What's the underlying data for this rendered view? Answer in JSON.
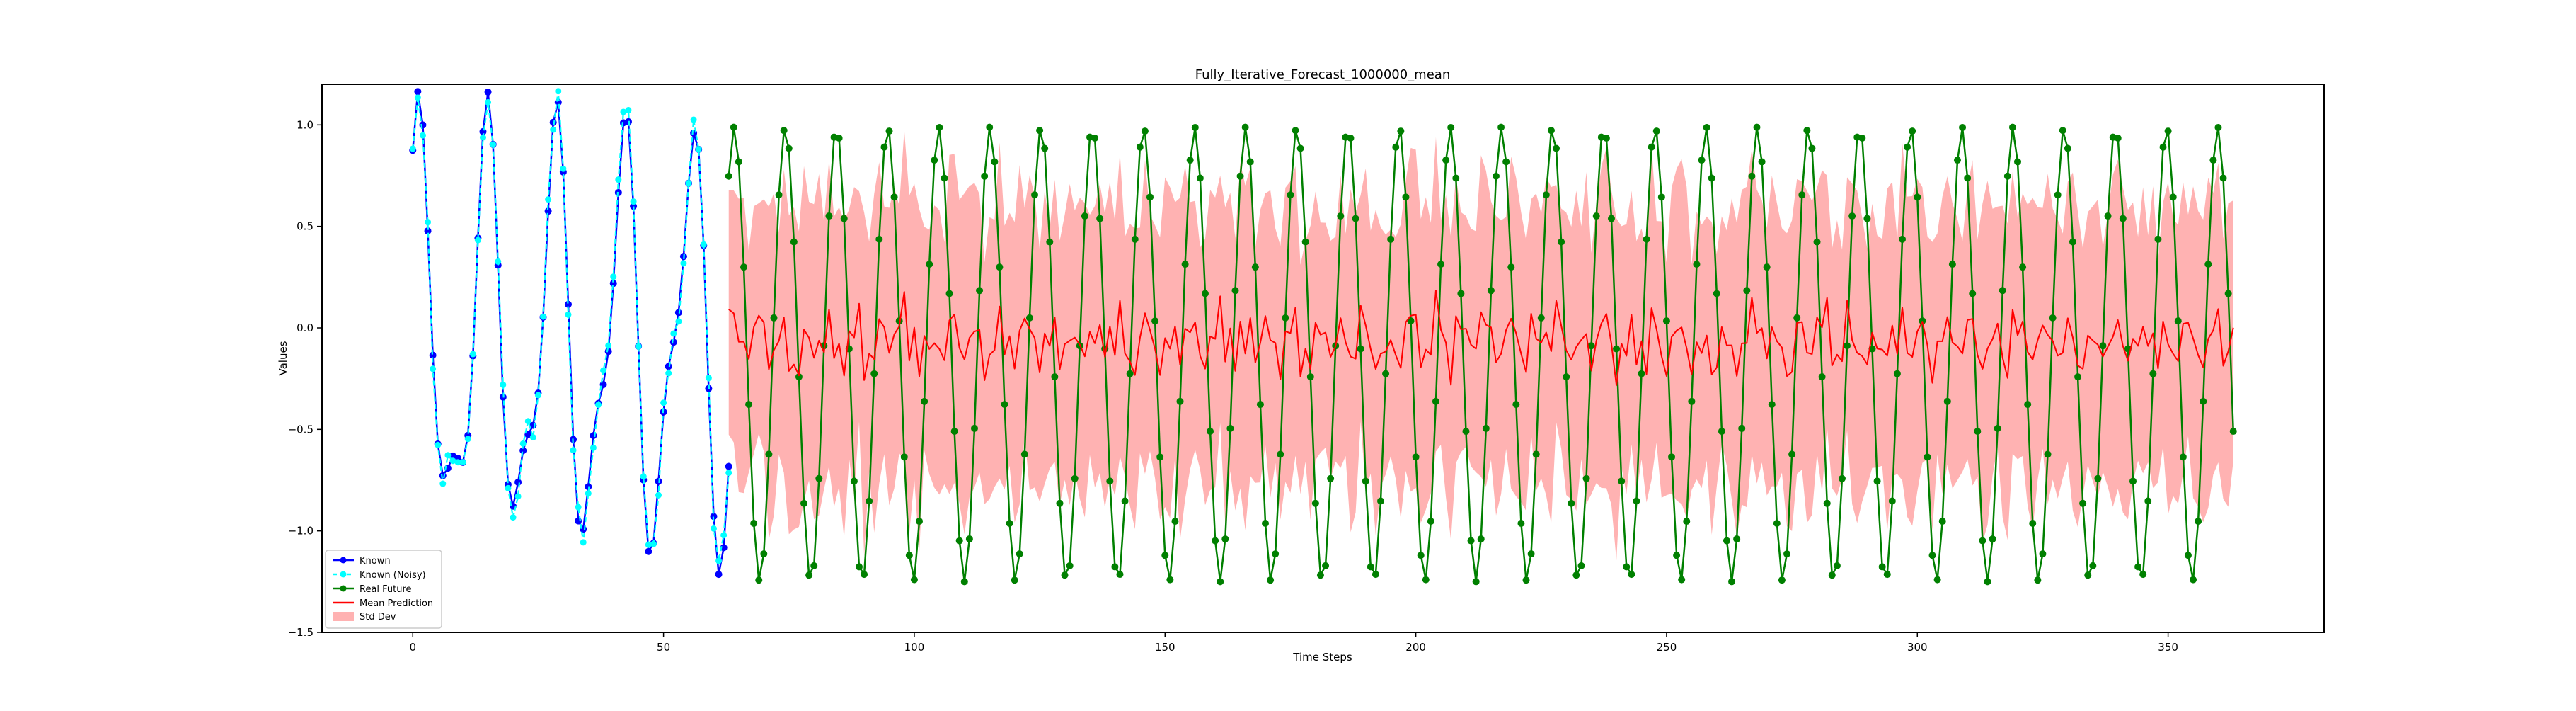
{
  "chart_data": {
    "type": "line",
    "title": "Fully_Iterative_Forecast_1000000_mean",
    "xlabel": "Time Steps",
    "ylabel": "Values",
    "xlim": [
      -18.1,
      381.1
    ],
    "ylim": [
      -1.5,
      1.2
    ],
    "xticks": [
      0,
      50,
      100,
      150,
      200,
      250,
      300,
      350
    ],
    "yticks": [
      -1.5,
      -1.0,
      -0.5,
      0.0,
      0.5,
      1.0
    ],
    "grid": false,
    "legend_position": "lower-left",
    "known_period": 13.5,
    "known_length": 64,
    "future_period": 10.2,
    "future_start": 63,
    "future_end": 363,
    "series": [
      {
        "name": "Known",
        "color": "#0000ff",
        "marker": "circle",
        "style": "solid"
      },
      {
        "name": "Known (Noisy)",
        "color": "#00ffff",
        "marker": "circle",
        "style": "dashed"
      },
      {
        "name": "Real Future",
        "color": "#008000",
        "marker": "circle",
        "style": "solid"
      },
      {
        "name": "Mean Prediction",
        "color": "#ff0000",
        "marker": "none",
        "style": "solid"
      },
      {
        "name": "Std Dev",
        "color": "#ff0000",
        "marker": "band",
        "style": "fill",
        "opacity": 0.3
      }
    ]
  }
}
